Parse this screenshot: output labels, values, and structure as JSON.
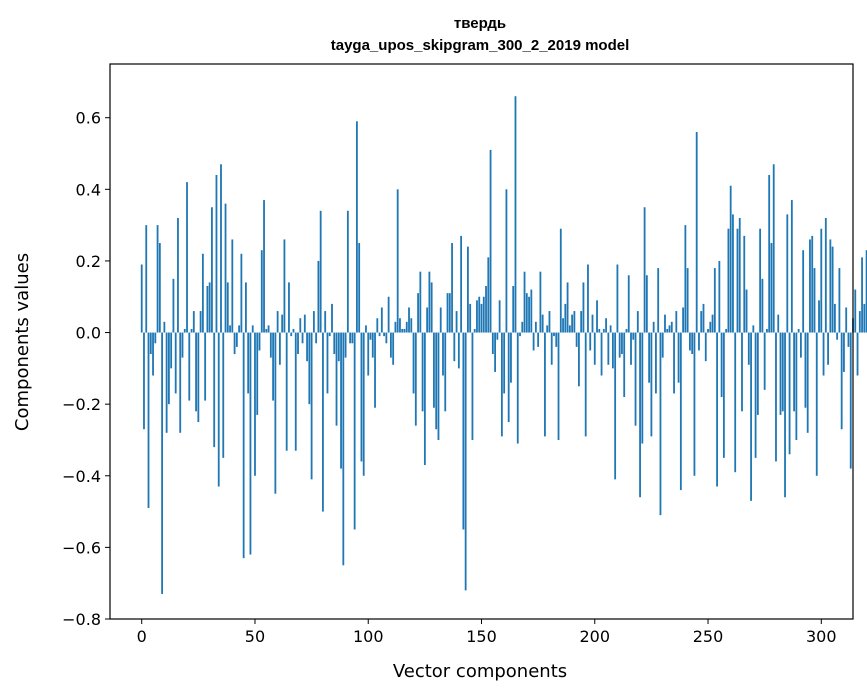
{
  "chart_data": {
    "type": "bar",
    "title": "твердь",
    "subtitle": "tayga_upos_skipgram_300_2_2019 model",
    "xlabel": "Vector components",
    "ylabel": "Components values",
    "xlim": [
      -14,
      314
    ],
    "ylim": [
      -0.8,
      0.75
    ],
    "xticks": [
      0,
      50,
      100,
      150,
      200,
      250,
      300
    ],
    "yticks": [
      -0.8,
      -0.6,
      -0.4,
      -0.2,
      0.0,
      0.2,
      0.4,
      0.6
    ],
    "xtick_labels": [
      "0",
      "50",
      "100",
      "150",
      "200",
      "250",
      "300"
    ],
    "ytick_labels": [
      "−0.8",
      "−0.6",
      "−0.4",
      "−0.2",
      "0.0",
      "0.2",
      "0.4",
      "0.6"
    ],
    "grid": false,
    "legend": "none",
    "bar_color": "#1f77b4",
    "x_start": 0,
    "values": [
      0.19,
      -0.27,
      0.3,
      -0.49,
      -0.06,
      -0.12,
      -0.03,
      0.3,
      0.25,
      -0.73,
      0.03,
      -0.28,
      -0.2,
      -0.1,
      0.15,
      -0.17,
      0.32,
      -0.28,
      -0.07,
      0.01,
      0.42,
      -0.19,
      0.01,
      0.06,
      -0.22,
      -0.25,
      0.06,
      0.22,
      -0.19,
      0.13,
      0.14,
      0.35,
      -0.32,
      0.44,
      -0.43,
      0.47,
      -0.35,
      0.36,
      0.14,
      0.02,
      0.26,
      -0.06,
      -0.04,
      0.02,
      0.22,
      -0.63,
      0.14,
      -0.17,
      -0.62,
      0.02,
      -0.4,
      -0.23,
      -0.05,
      0.23,
      0.37,
      0.01,
      0.02,
      -0.07,
      -0.19,
      -0.45,
      0.06,
      -0.09,
      0.05,
      0.26,
      -0.33,
      0.14,
      -0.01,
      0.01,
      -0.33,
      -0.06,
      0.04,
      -0.03,
      0.05,
      -0.08,
      -0.2,
      -0.41,
      0.06,
      -0.03,
      0.2,
      0.34,
      -0.5,
      0.06,
      -0.17,
      -0.01,
      0.08,
      -0.06,
      -0.26,
      -0.08,
      -0.38,
      -0.65,
      -0.07,
      0.34,
      -0.03,
      -0.03,
      -0.55,
      0.59,
      0.25,
      -0.36,
      -0.4,
      0.02,
      -0.12,
      -0.02,
      -0.07,
      -0.21,
      0.04,
      -0.01,
      0.07,
      -0.01,
      -0.03,
      0.1,
      -0.07,
      -0.09,
      0.03,
      0.4,
      0.04,
      0.01,
      0.01,
      0.03,
      0.07,
      0.04,
      -0.17,
      -0.26,
      0.11,
      0.17,
      -0.22,
      -0.37,
      0.07,
      0.17,
      0.14,
      -0.21,
      -0.27,
      -0.3,
      0.07,
      -0.12,
      -0.22,
      0.11,
      0.11,
      0.25,
      -0.08,
      0.06,
      -0.1,
      0.27,
      -0.55,
      -0.72,
      0.24,
      0.08,
      -0.3,
      0.01,
      0.09,
      0.1,
      0.08,
      0.1,
      0.13,
      0.21,
      0.51,
      -0.06,
      -0.11,
      -0.02,
      0.09,
      -0.29,
      -0.17,
      0.4,
      -0.25,
      -0.14,
      0.13,
      0.66,
      -0.31,
      -0.01,
      0.03,
      0.17,
      0.11,
      0.1,
      0.12,
      -0.05,
      0.03,
      -0.04,
      0.17,
      0.05,
      -0.29,
      0.02,
      0.06,
      -0.09,
      -0.01,
      -0.04,
      -0.3,
      0.29,
      0.04,
      0.08,
      0.14,
      0.02,
      0.05,
      0.06,
      -0.04,
      -0.15,
      0.06,
      0.14,
      -0.29,
      0.19,
      -0.05,
      0.05,
      -0.09,
      0.09,
      0.01,
      -0.12,
      0.01,
      0.04,
      -0.09,
      0.02,
      -0.1,
      -0.41,
      0.19,
      -0.07,
      -0.06,
      -0.18,
      0.01,
      0.16,
      -0.09,
      -0.02,
      -0.26,
      0.06,
      -0.46,
      -0.31,
      0.35,
      0.16,
      -0.14,
      -0.29,
      0.03,
      -0.17,
      0.18,
      -0.51,
      -0.07,
      0.05,
      0.01,
      0.02,
      0.03,
      -0.17,
      0.06,
      -0.14,
      -0.44,
      0.07,
      0.3,
      0.18,
      -0.05,
      -0.06,
      -0.4,
      0.56,
      -0.05,
      0.06,
      0.08,
      -0.08,
      0.01,
      0.03,
      0.05,
      0.18,
      -0.43,
      0.2,
      -0.18,
      -0.35,
      0.01,
      0.29,
      0.41,
      0.33,
      -0.39,
      0.29,
      0.32,
      -0.22,
      0.27,
      0.12,
      -0.09,
      -0.47,
      0.02,
      -0.35,
      -0.23,
      0.29,
      0.15,
      -0.16,
      0.01,
      0.44,
      0.25,
      0.47,
      -0.36,
      0.05,
      -0.23,
      -0.22,
      -0.46,
      0.33,
      -0.34,
      0.37,
      -0.22,
      -0.3,
      0.01,
      -0.07,
      0.23,
      -0.21,
      -0.28,
      0.26,
      0.27,
      0.18,
      -0.4,
      0.09,
      0.29,
      -0.12,
      0.32,
      -0.09,
      0.26,
      0.24,
      0.08,
      -0.02,
      0.18,
      -0.27,
      -0.11,
      0.07,
      -0.04,
      -0.38,
      0.04,
      0.12,
      -0.12,
      0.06,
      0.21,
      0.08,
      0.23,
      -0.11
    ]
  }
}
